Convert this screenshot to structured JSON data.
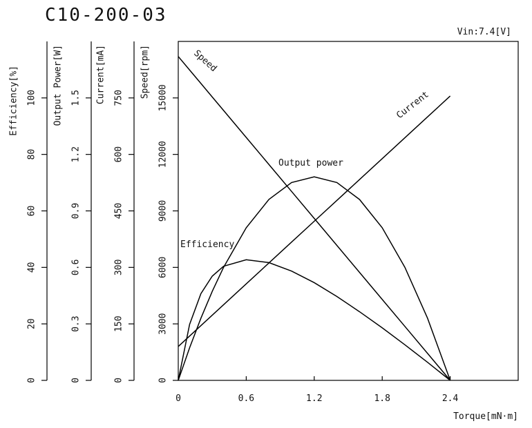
{
  "chart_data": {
    "type": "line",
    "title": "C10-200-03",
    "annotation": "Vin:7.4[V]",
    "xlabel": "Torque[mN·m]",
    "xlim": [
      0,
      3.0
    ],
    "xticks": [
      0,
      0.6,
      1.2,
      1.8,
      2.4
    ],
    "y_axes": [
      {
        "label": "Efficiency[%]",
        "ylim": [
          0,
          120
        ],
        "yticks": [
          0,
          20,
          40,
          60,
          80,
          100
        ]
      },
      {
        "label": "Output Power[W]",
        "ylim": [
          0,
          1.8
        ],
        "yticks": [
          0,
          0.3,
          0.6,
          0.9,
          1.2,
          1.5
        ]
      },
      {
        "label": "Current[mA]",
        "ylim": [
          0,
          900
        ],
        "yticks": [
          0,
          150,
          300,
          450,
          600,
          750
        ]
      },
      {
        "label": "Speed[rpm]",
        "ylim": [
          0,
          18000
        ],
        "yticks": [
          0,
          3000,
          6000,
          9000,
          12000,
          15000
        ]
      }
    ],
    "x": [
      0,
      0.1,
      0.2,
      0.3,
      0.4,
      0.6,
      0.8,
      1.0,
      1.2,
      1.4,
      1.6,
      1.8,
      2.0,
      2.2,
      2.4
    ],
    "series": [
      {
        "name": "Speed",
        "axis": 3,
        "color": "#000000",
        "values": [
          17200,
          16483,
          15767,
          15050,
          14333,
          12900,
          11467,
          10033,
          8600,
          7167,
          5733,
          4300,
          2867,
          1433,
          0
        ]
      },
      {
        "name": "Current",
        "axis": 2,
        "color": "#000000",
        "values": [
          90,
          117.7,
          145.4,
          173.1,
          200.8,
          256.3,
          311.7,
          367.1,
          422.5,
          477.9,
          533.3,
          588.8,
          644.2,
          699.6,
          755
        ]
      },
      {
        "name": "Output power",
        "axis": 1,
        "color": "#000000",
        "values": [
          0,
          0.1726,
          0.3302,
          0.4728,
          0.6004,
          0.8105,
          0.9607,
          1.0507,
          1.0807,
          1.0507,
          0.9606,
          0.8105,
          0.6005,
          0.3301,
          0
        ]
      },
      {
        "name": "Efficiency",
        "axis": 0,
        "color": "#000000",
        "values": [
          0,
          19.8,
          30.7,
          36.9,
          40.4,
          42.7,
          41.7,
          38.7,
          34.6,
          29.7,
          24.3,
          18.6,
          12.6,
          6.4,
          0
        ]
      }
    ]
  }
}
